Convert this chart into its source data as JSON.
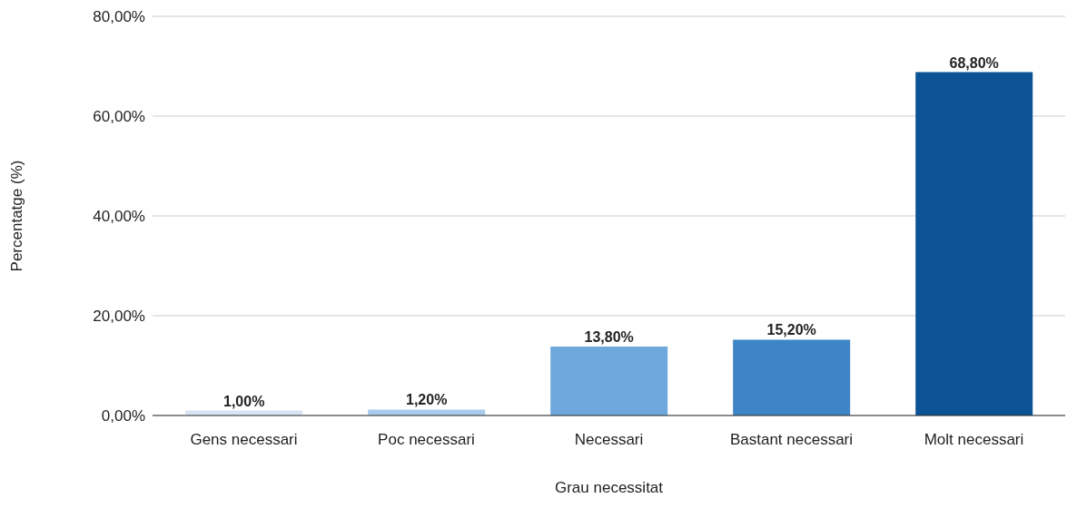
{
  "chart_data": {
    "type": "bar",
    "xlabel": "Grau necessitat",
    "ylabel": "Percentatge (%)",
    "categories": [
      "Gens necessari",
      "Poc necessari",
      "Necessari",
      "Bastant necessari",
      "Molt necessari"
    ],
    "values": [
      1.0,
      1.2,
      13.8,
      15.2,
      68.8
    ],
    "colors": [
      "#d6e4f3",
      "#a9cbec",
      "#6fa8dc",
      "#3d85c6",
      "#0b5394"
    ],
    "value_labels": [
      "1,00%",
      "1,20%",
      "13,80%",
      "15,20%",
      "68,80%"
    ],
    "ylim": [
      0,
      80
    ],
    "yticks": [
      {
        "value": 0,
        "label": "0,00%"
      },
      {
        "value": 20,
        "label": "20,00%"
      },
      {
        "value": 40,
        "label": "40,00%"
      },
      {
        "value": 60,
        "label": "60,00%"
      },
      {
        "value": 80,
        "label": "80,00%"
      }
    ],
    "grid": "y"
  }
}
